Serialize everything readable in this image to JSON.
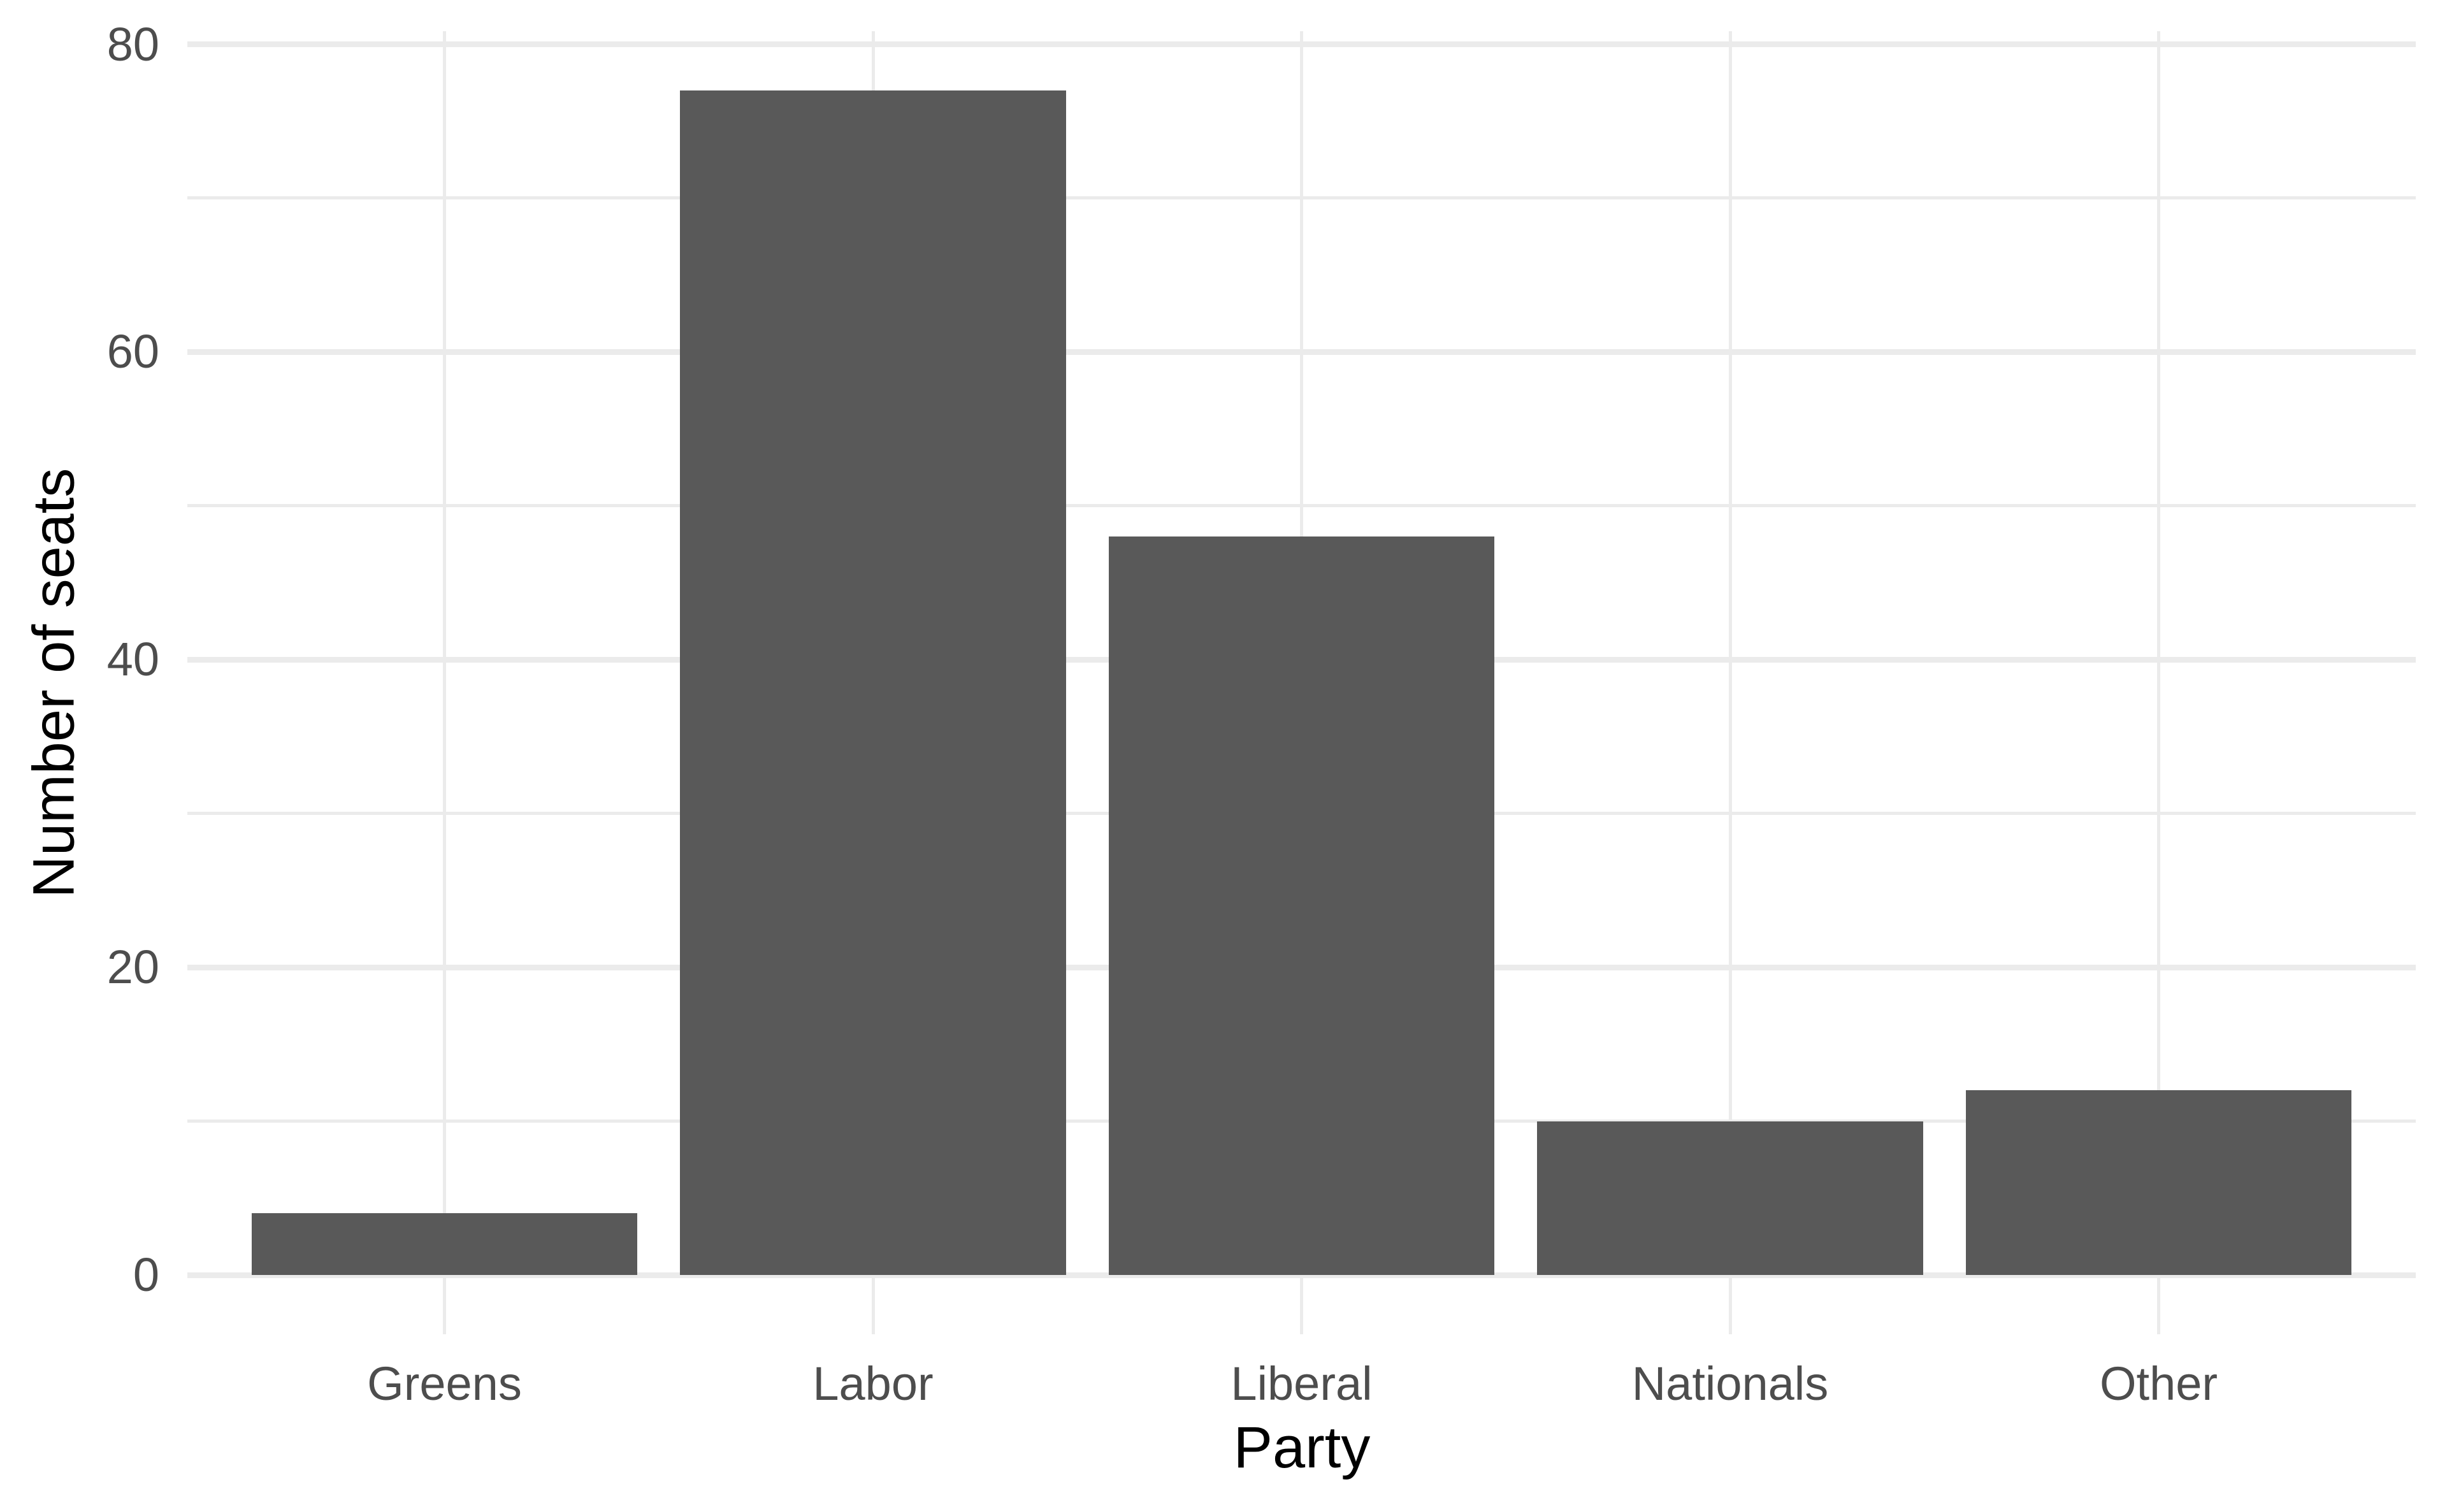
{
  "chart_data": {
    "type": "bar",
    "title": "",
    "xlabel": "Party",
    "ylabel": "Number of seats",
    "categories": [
      "Greens",
      "Labor",
      "Liberal",
      "Nationals",
      "Other"
    ],
    "values": [
      4,
      77,
      48,
      10,
      12
    ],
    "yticks": [
      0,
      20,
      40,
      60,
      80
    ],
    "yminor_ticks": [
      10,
      30,
      50,
      70
    ],
    "ylim": [
      0,
      80
    ],
    "grid": "on",
    "legend": "none",
    "bar_color": "#595959",
    "grid_color": "#EBEBEB",
    "tick_label_color": "#4D4D4D",
    "axis_title_color": "#000000",
    "background_color": "#FFFFFF"
  }
}
